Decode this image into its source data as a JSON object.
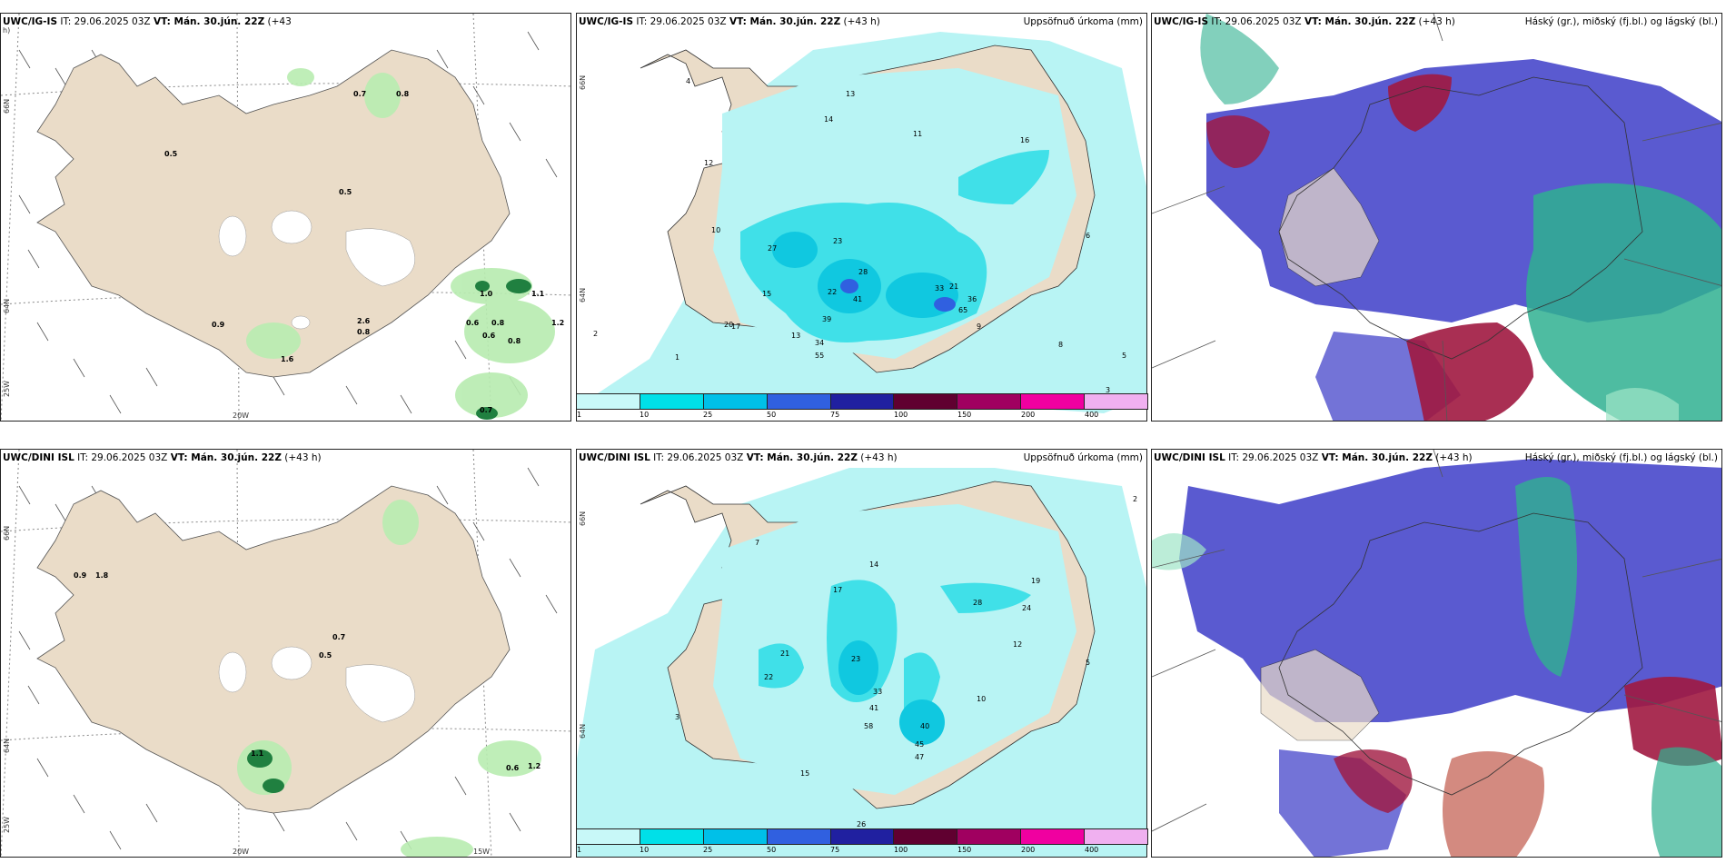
{
  "panels": {
    "top_left": {
      "title_model": "UWC/IG-IS",
      "title_rest": " IT: 29.06.2025 03Z ",
      "vt_label": "VT: Mán. 30.jún. 22Z",
      "suffix": " (+43",
      "suffix2": "h)"
    },
    "top_mid": {
      "title_model": "UWC/IG-IS",
      "title_rest": " IT: 29.06.2025 03Z ",
      "vt_label": "VT: Mán. 30.jún. 22Z",
      "suffix": " (+43 h)",
      "right_label": "Uppsöfnuð úrkoma (mm)"
    },
    "top_right": {
      "title_model": "UWC/IG-IS",
      "title_rest": " IT: 29.06.2025 03Z ",
      "vt_label": "VT: Mán. 30.jún. 22Z",
      "suffix": " (+43 h)",
      "right_label": "Háský (gr.), miðský (fj.bl.) og lágský (bl.)"
    },
    "bot_left": {
      "title_model": "UWC/DINI ISL",
      "title_rest": " IT: 29.06.2025 03Z ",
      "vt_label": "VT: Mán. 30.jún. 22Z",
      "suffix": " (+43 h)"
    },
    "bot_mid": {
      "title_model": "UWC/DINI ISL",
      "title_rest": " IT: 29.06.2025 03Z ",
      "vt_label": "VT: Mán. 30.jún. 22Z",
      "suffix": " (+43 h)",
      "right_label": "Uppsöfnuð úrkoma (mm)"
    },
    "bot_right": {
      "title_model": "UWC/DINI ISL",
      "title_rest": " IT: 29.06.2025 03Z ",
      "vt_label": "VT: Mán. 30.jún. 22Z",
      "suffix": " (+43 h)",
      "right_label": "Háský (gr.), miðský (fj.bl.) og lágský (bl.)"
    }
  },
  "axis_labels": {
    "lat66": "66N",
    "lat64": "64N",
    "lon20": "20W",
    "lon15": "15W",
    "lon25": "25W"
  },
  "colorbar": {
    "colors": [
      "#c8f8f8",
      "#00e0e8",
      "#00c0e8",
      "#3060e0",
      "#2020a0",
      "#600030",
      "#a00060",
      "#f000a0",
      "#f0b0f0"
    ],
    "ticks": [
      "1",
      "10",
      "25",
      "50",
      "75",
      "100",
      "150",
      "200",
      "400"
    ]
  },
  "map_colors": {
    "land": "#eadcc8",
    "sea": "#ffffff",
    "precip_light": "#b8f4f4",
    "precip_mid": "#40e0e8",
    "precip_heavy": "#10c8e0",
    "cloud_low": "#5a5ad0",
    "cloud_mid": "#2fb090",
    "cloud_high": "#a01840",
    "green_light": "#b8ecb0",
    "green_dark": "#208040"
  },
  "values": {
    "top_left": [
      "0.5",
      "0.8",
      "0.7",
      "0.5",
      "0.9",
      "2.6",
      "0.8",
      "0.6",
      "0.8",
      "1.0",
      "1.1",
      "0.6",
      "0.8",
      "0.7",
      "1.6",
      "1.2"
    ],
    "top_mid": [
      "4",
      "14",
      "13",
      "11",
      "23",
      "27",
      "28",
      "41",
      "22",
      "39",
      "34",
      "55",
      "16",
      "21",
      "33",
      "65",
      "36",
      "20",
      "17",
      "15",
      "13",
      "12",
      "10",
      "9",
      "8",
      "6",
      "5",
      "3",
      "2",
      "1"
    ],
    "bot_left": [
      "0.9",
      "1.8",
      "0.7",
      "0.5",
      "1.1",
      "0.6",
      "1.2"
    ],
    "bot_mid": [
      "7",
      "17",
      "14",
      "23",
      "22",
      "33",
      "41",
      "58",
      "40",
      "45",
      "47",
      "28",
      "24",
      "19",
      "21",
      "15",
      "26",
      "12",
      "10",
      "5",
      "3",
      "2"
    ]
  }
}
